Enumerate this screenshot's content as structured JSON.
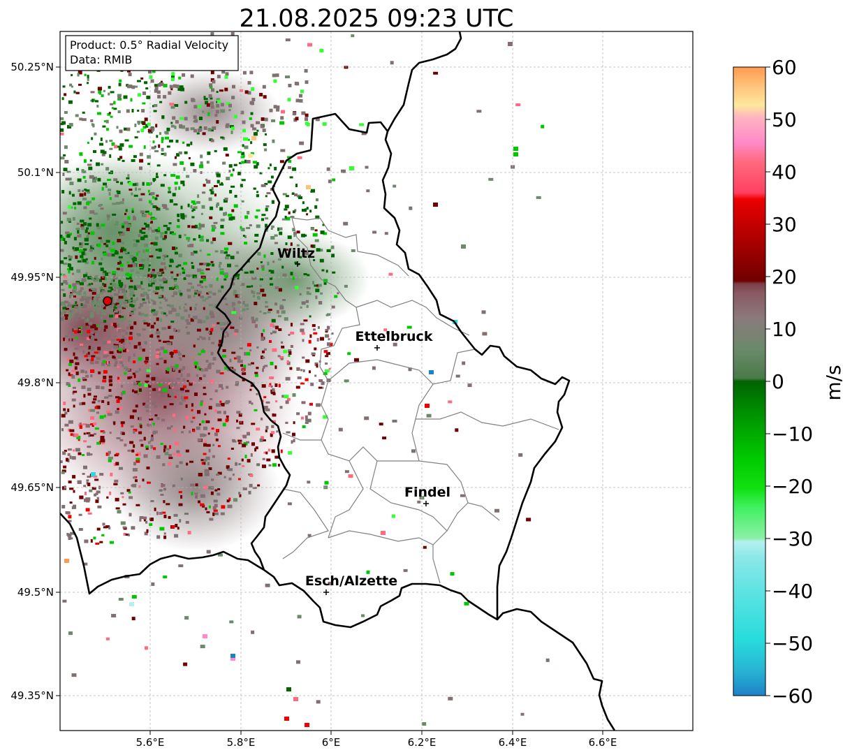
{
  "title": "21.08.2025 09:23 UTC",
  "info": {
    "product": "Product: 0.5° Radial Velocity",
    "data": "Data: RMIB"
  },
  "x_ticks": [
    "5.6°E",
    "5.8°E",
    "6°E",
    "6.2°E",
    "6.4°E",
    "6.6°E"
  ],
  "y_ticks": [
    "50.25°N",
    "50.1°N",
    "49.95°N",
    "49.8°N",
    "49.65°N",
    "49.5°N",
    "49.35°N"
  ],
  "cities": [
    {
      "name": "Wiltz"
    },
    {
      "name": "Ettelbruck"
    },
    {
      "name": "Findel"
    },
    {
      "name": "Esch/Alzette"
    }
  ],
  "colorbar": {
    "unit": "m/s",
    "ticks": [
      "60",
      "50",
      "40",
      "30",
      "20",
      "10",
      "0",
      "−10",
      "−20",
      "−30",
      "−40",
      "−50",
      "−60"
    ],
    "range": [
      -60,
      60
    ],
    "colors": {
      "orange": "#ff9a50",
      "light-orange": "#ffc27a",
      "pale-yellow": "#ffe89c",
      "pink": "#ff8ac8",
      "salmon": "#ff6a80",
      "red": "#f00000",
      "dark-red": "#700000",
      "brown-gray": "#8a6a72",
      "gray-green": "#6a8a6a",
      "dark-green": "#006400",
      "green": "#00c800",
      "bright-green": "#32ff32",
      "pale-green": "#8cf0a8",
      "pale-cyan": "#b4f0f0",
      "cyan": "#28dcdc",
      "blue": "#1e82c8"
    }
  }
}
